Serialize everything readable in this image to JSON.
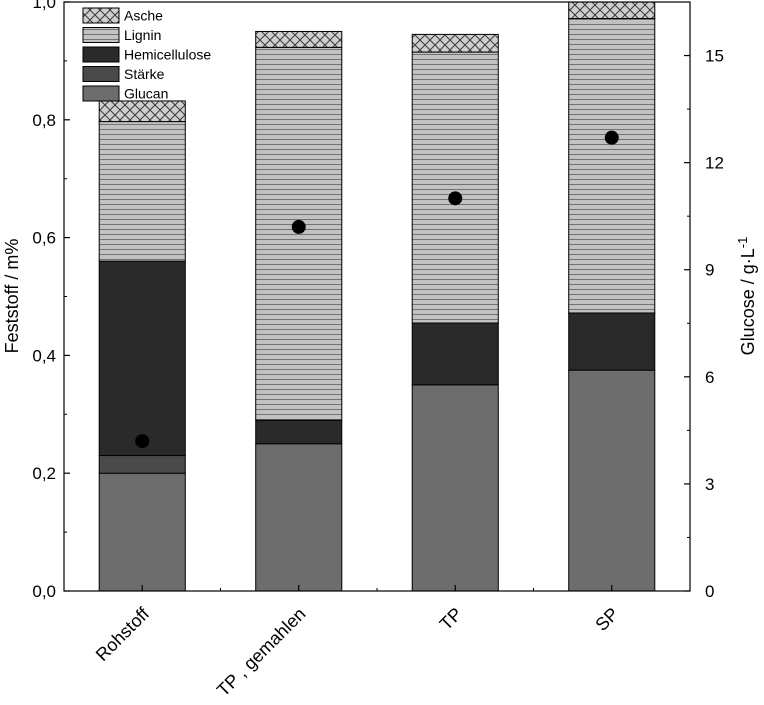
{
  "chart_data": {
    "type": "bar",
    "stacked": true,
    "categories": [
      "Rohstoff",
      "TP , gemahlen",
      "TP",
      "SP"
    ],
    "series": [
      {
        "name": "Glucan",
        "values": [
          0.2,
          0.25,
          0.35,
          0.375
        ],
        "color": "#6d6d6d",
        "pattern": "solid"
      },
      {
        "name": "Stärke",
        "values": [
          0.03,
          0.0,
          0.0,
          0.0
        ],
        "color": "#4a4a4a",
        "pattern": "solid"
      },
      {
        "name": "Hemicellulose",
        "values": [
          0.33,
          0.04,
          0.105,
          0.097
        ],
        "color": "#2a2a2a",
        "pattern": "solid"
      },
      {
        "name": "Lignin",
        "values": [
          0.237,
          0.633,
          0.46,
          0.5
        ],
        "color": "#b8b8b8",
        "pattern": "horizontal-lines"
      },
      {
        "name": "Asche",
        "values": [
          0.035,
          0.027,
          0.03,
          0.028
        ],
        "color": "#c8c8c8",
        "pattern": "crosshatch"
      }
    ],
    "glucose": {
      "values": [
        4.2,
        10.2,
        11.0,
        12.7
      ],
      "marker": "filled-circle"
    },
    "ylabel": "Feststoff / m%",
    "ylim": [
      0,
      1.0
    ],
    "yticks": [
      "0,0",
      "0,2",
      "0,4",
      "0,6",
      "0,8",
      "1,0"
    ],
    "y2label_main": "Glucose / g·L",
    "y2label_sup": "-1",
    "y2lim": [
      0,
      16.5
    ],
    "y2ticks": [
      "0",
      "3",
      "6",
      "9",
      "12",
      "15"
    ],
    "legend_position": "top-left",
    "legend_order": [
      "Asche",
      "Lignin",
      "Hemicellulose",
      "Stärke",
      "Glucan"
    ],
    "grid": false
  }
}
